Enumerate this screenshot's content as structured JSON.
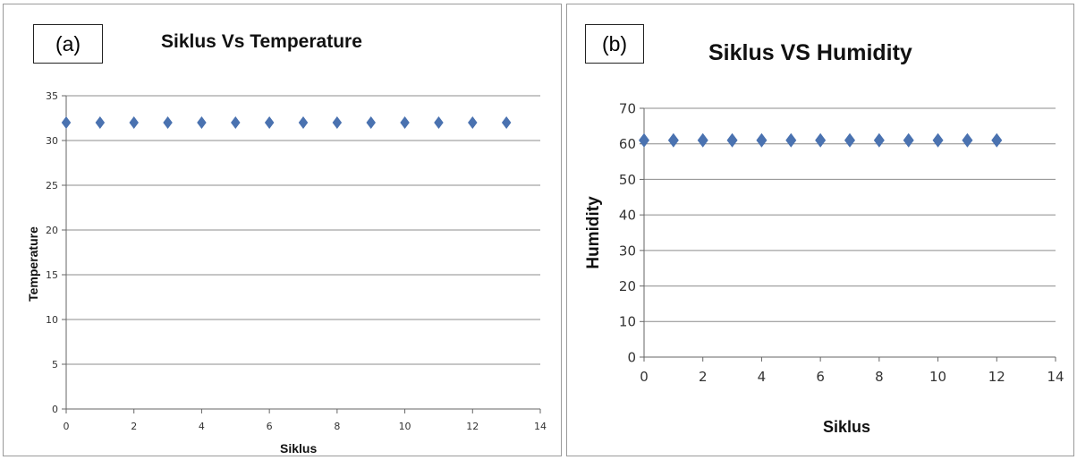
{
  "panels": [
    {
      "tag": "(a)"
    },
    {
      "tag": "(b)"
    }
  ],
  "chart_data": [
    {
      "type": "scatter",
      "title": "Siklus Vs Temperature",
      "xlabel": "Siklus",
      "ylabel": "Temperature",
      "xlim": [
        0,
        14
      ],
      "ylim": [
        0,
        35
      ],
      "x_ticks": [
        0,
        2,
        4,
        6,
        8,
        10,
        12,
        14
      ],
      "y_ticks": [
        0,
        5,
        10,
        15,
        20,
        25,
        30,
        35
      ],
      "grid": "horizontal",
      "marker": "diamond",
      "color": "#4a72b0",
      "x": [
        0,
        1,
        2,
        3,
        4,
        5,
        6,
        7,
        8,
        9,
        10,
        11,
        12,
        13
      ],
      "y": [
        32,
        32,
        32,
        32,
        32,
        32,
        32,
        32,
        32,
        32,
        32,
        32,
        32,
        32
      ]
    },
    {
      "type": "scatter",
      "title": "Siklus VS Humidity",
      "xlabel": "Siklus",
      "ylabel": "Humidity",
      "xlim": [
        0,
        14
      ],
      "ylim": [
        0,
        70
      ],
      "x_ticks": [
        0,
        2,
        4,
        6,
        8,
        10,
        12,
        14
      ],
      "y_ticks": [
        0,
        10,
        20,
        30,
        40,
        50,
        60,
        70
      ],
      "grid": "horizontal",
      "marker": "diamond",
      "color": "#4a72b0",
      "x": [
        0,
        1,
        2,
        3,
        4,
        5,
        6,
        7,
        8,
        9,
        10,
        11,
        12
      ],
      "y": [
        61,
        61,
        61,
        61,
        61,
        61,
        61,
        61,
        61,
        61,
        61,
        61,
        61
      ]
    }
  ]
}
